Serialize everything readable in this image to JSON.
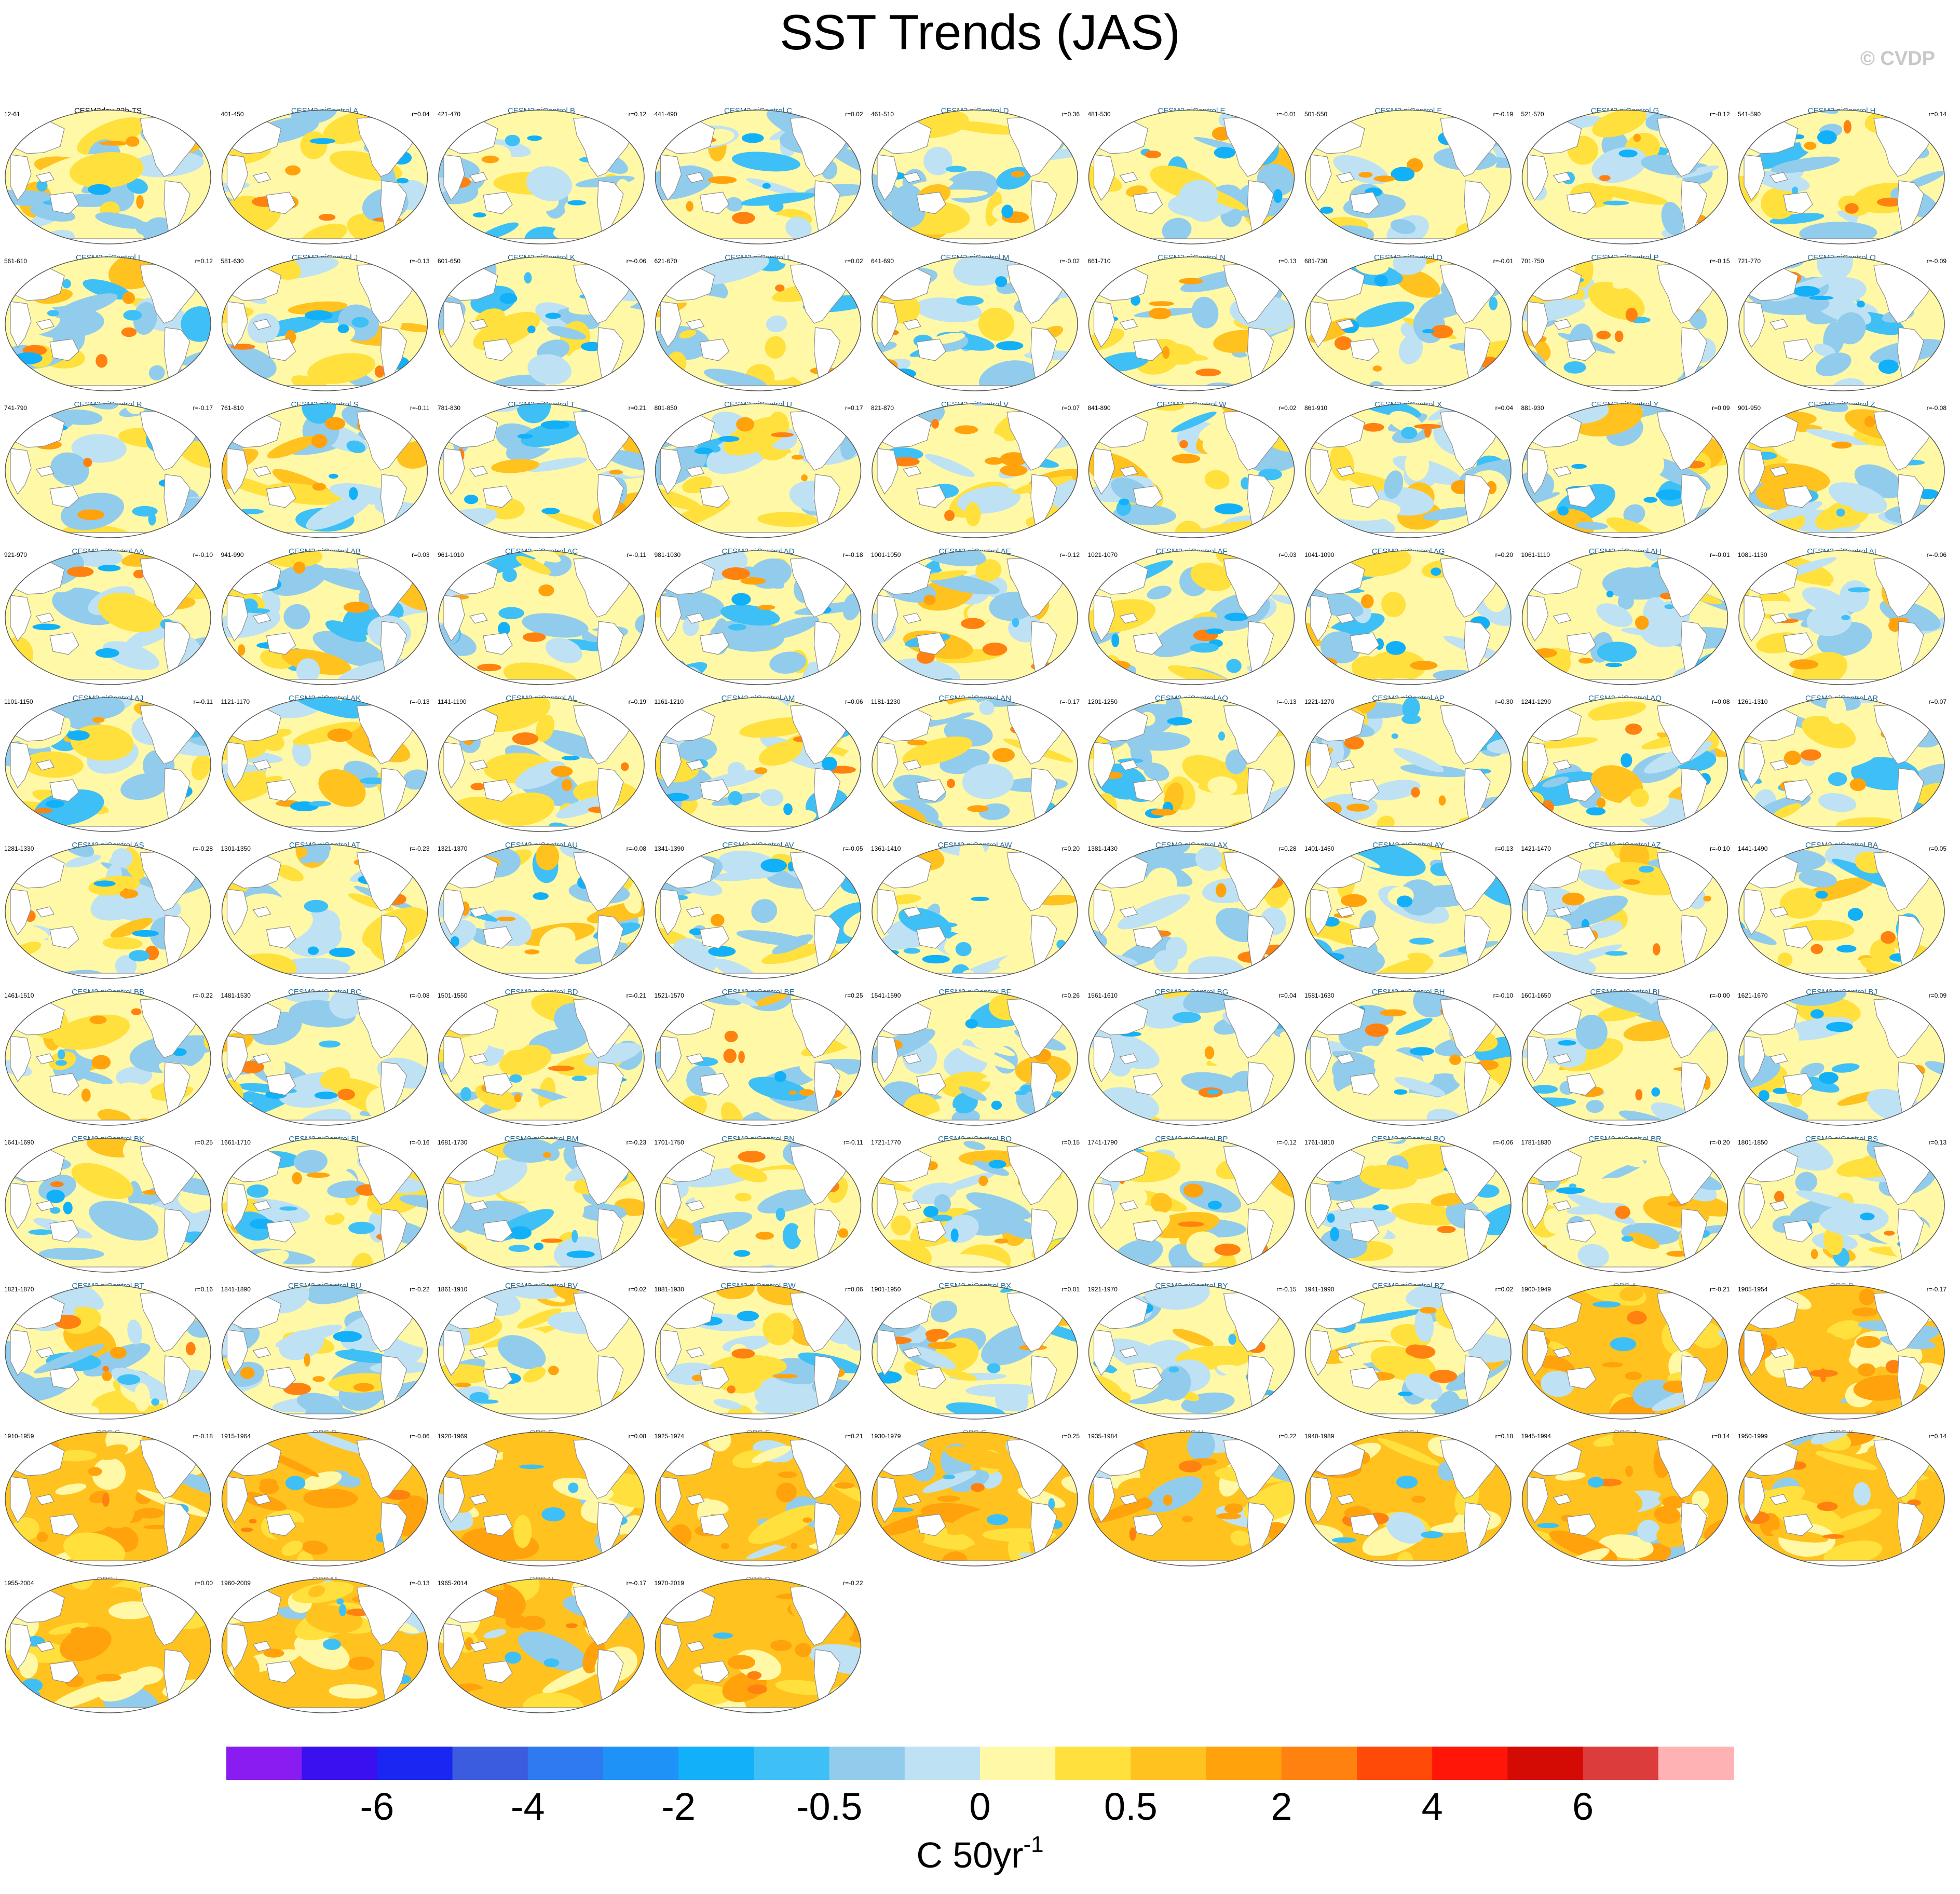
{
  "title": "SST Trends (JAS)",
  "copyright": "© CVDP",
  "chart_data": {
    "type": "heatmap",
    "title": "SST Trends (JAS)",
    "variable": "SST trend",
    "units_base": "C 50yr",
    "units_exp": "-1",
    "colorbar": {
      "colors": [
        "#8a1cf2",
        "#3a10f0",
        "#1a26f2",
        "#3c5cdf",
        "#2f7af0",
        "#1e92f6",
        "#12b0f8",
        "#3ec0f7",
        "#92ccec",
        "#bee2f4",
        "#fff8a6",
        "#ffe03c",
        "#ffc21e",
        "#ffa20c",
        "#ff8210",
        "#ff4a08",
        "#ff1608",
        "#d40a04",
        "#dc3c3c",
        "#ffb2b4"
      ],
      "tick_labels": [
        "-6",
        "-4",
        "-2",
        "-0.5",
        "0",
        "0.5",
        "2",
        "4",
        "6"
      ],
      "tick_boundaries": [
        2,
        4,
        6,
        8,
        10,
        12,
        14,
        16,
        18
      ]
    },
    "panels": [
      {
        "title": "CESM3dev-82b-TS",
        "years": "12-61",
        "r": "",
        "kind": "ref"
      },
      {
        "title": "CESM2 piControl A",
        "years": "401-450",
        "r": "r=0.04",
        "kind": "model"
      },
      {
        "title": "CESM2 piControl B",
        "years": "421-470",
        "r": "r=0.12",
        "kind": "model"
      },
      {
        "title": "CESM2 piControl C",
        "years": "441-490",
        "r": "r=0.02",
        "kind": "model"
      },
      {
        "title": "CESM2 piControl D",
        "years": "461-510",
        "r": "r=0.36",
        "kind": "model"
      },
      {
        "title": "CESM2 piControl E",
        "years": "481-530",
        "r": "r=-0.01",
        "kind": "model"
      },
      {
        "title": "CESM2 piControl F",
        "years": "501-550",
        "r": "r=-0.19",
        "kind": "model"
      },
      {
        "title": "CESM2 piControl G",
        "years": "521-570",
        "r": "r=-0.12",
        "kind": "model"
      },
      {
        "title": "CESM2 piControl H",
        "years": "541-590",
        "r": "r=0.14",
        "kind": "model"
      },
      {
        "title": "CESM2 piControl I",
        "years": "561-610",
        "r": "r=0.12",
        "kind": "model"
      },
      {
        "title": "CESM2 piControl J",
        "years": "581-630",
        "r": "r=-0.13",
        "kind": "model"
      },
      {
        "title": "CESM2 piControl K",
        "years": "601-650",
        "r": "r=-0.06",
        "kind": "model"
      },
      {
        "title": "CESM2 piControl L",
        "years": "621-670",
        "r": "r=0.02",
        "kind": "model"
      },
      {
        "title": "CESM2 piControl M",
        "years": "641-690",
        "r": "r=-0.02",
        "kind": "model"
      },
      {
        "title": "CESM2 piControl N",
        "years": "661-710",
        "r": "r=0.13",
        "kind": "model"
      },
      {
        "title": "CESM2 piControl O",
        "years": "681-730",
        "r": "r=-0.01",
        "kind": "model"
      },
      {
        "title": "CESM2 piControl P",
        "years": "701-750",
        "r": "r=-0.15",
        "kind": "model"
      },
      {
        "title": "CESM2 piControl Q",
        "years": "721-770",
        "r": "r=-0.09",
        "kind": "model"
      },
      {
        "title": "CESM2 piControl R",
        "years": "741-790",
        "r": "r=-0.17",
        "kind": "model"
      },
      {
        "title": "CESM2 piControl S",
        "years": "761-810",
        "r": "r=-0.11",
        "kind": "model"
      },
      {
        "title": "CESM2 piControl T",
        "years": "781-830",
        "r": "r=0.21",
        "kind": "model"
      },
      {
        "title": "CESM2 piControl U",
        "years": "801-850",
        "r": "r=0.17",
        "kind": "model"
      },
      {
        "title": "CESM2 piControl V",
        "years": "821-870",
        "r": "r=0.07",
        "kind": "model"
      },
      {
        "title": "CESM2 piControl W",
        "years": "841-890",
        "r": "r=0.02",
        "kind": "model"
      },
      {
        "title": "CESM2 piControl X",
        "years": "861-910",
        "r": "r=0.04",
        "kind": "model"
      },
      {
        "title": "CESM2 piControl Y",
        "years": "881-930",
        "r": "r=0.09",
        "kind": "model"
      },
      {
        "title": "CESM2 piControl Z",
        "years": "901-950",
        "r": "r=-0.08",
        "kind": "model"
      },
      {
        "title": "CESM2 piControl AA",
        "years": "921-970",
        "r": "r=-0.10",
        "kind": "model"
      },
      {
        "title": "CESM2 piControl AB",
        "years": "941-990",
        "r": "r=0.03",
        "kind": "model"
      },
      {
        "title": "CESM2 piControl AC",
        "years": "961-1010",
        "r": "r=-0.11",
        "kind": "model"
      },
      {
        "title": "CESM2 piControl AD",
        "years": "981-1030",
        "r": "r=-0.18",
        "kind": "model"
      },
      {
        "title": "CESM2 piControl AE",
        "years": "1001-1050",
        "r": "r=-0.12",
        "kind": "model"
      },
      {
        "title": "CESM2 piControl AF",
        "years": "1021-1070",
        "r": "r=0.03",
        "kind": "model"
      },
      {
        "title": "CESM2 piControl AG",
        "years": "1041-1090",
        "r": "r=0.20",
        "kind": "model"
      },
      {
        "title": "CESM2 piControl AH",
        "years": "1061-1110",
        "r": "r=-0.01",
        "kind": "model"
      },
      {
        "title": "CESM2 piControl AI",
        "years": "1081-1130",
        "r": "r=-0.06",
        "kind": "model"
      },
      {
        "title": "CESM2 piControl AJ",
        "years": "1101-1150",
        "r": "r=-0.11",
        "kind": "model"
      },
      {
        "title": "CESM2 piControl AK",
        "years": "1121-1170",
        "r": "r=-0.13",
        "kind": "model"
      },
      {
        "title": "CESM2 piControl AL",
        "years": "1141-1190",
        "r": "r=0.19",
        "kind": "model"
      },
      {
        "title": "CESM2 piControl AM",
        "years": "1161-1210",
        "r": "r=0.06",
        "kind": "model"
      },
      {
        "title": "CESM2 piControl AN",
        "years": "1181-1230",
        "r": "r=-0.17",
        "kind": "model"
      },
      {
        "title": "CESM2 piControl AO",
        "years": "1201-1250",
        "r": "r=-0.13",
        "kind": "model"
      },
      {
        "title": "CESM2 piControl AP",
        "years": "1221-1270",
        "r": "r=0.30",
        "kind": "model"
      },
      {
        "title": "CESM2 piControl AQ",
        "years": "1241-1290",
        "r": "r=0.08",
        "kind": "model"
      },
      {
        "title": "CESM2 piControl AR",
        "years": "1261-1310",
        "r": "r=0.07",
        "kind": "model"
      },
      {
        "title": "CESM2 piControl AS",
        "years": "1281-1330",
        "r": "r=-0.28",
        "kind": "model"
      },
      {
        "title": "CESM2 piControl AT",
        "years": "1301-1350",
        "r": "r=-0.23",
        "kind": "model"
      },
      {
        "title": "CESM2 piControl AU",
        "years": "1321-1370",
        "r": "r=-0.08",
        "kind": "model"
      },
      {
        "title": "CESM2 piControl AV",
        "years": "1341-1390",
        "r": "r=-0.05",
        "kind": "model"
      },
      {
        "title": "CESM2 piControl AW",
        "years": "1361-1410",
        "r": "r=0.20",
        "kind": "model"
      },
      {
        "title": "CESM2 piControl AX",
        "years": "1381-1430",
        "r": "r=0.28",
        "kind": "model"
      },
      {
        "title": "CESM2 piControl AY",
        "years": "1401-1450",
        "r": "r=0.13",
        "kind": "model"
      },
      {
        "title": "CESM2 piControl AZ",
        "years": "1421-1470",
        "r": "r=-0.10",
        "kind": "model"
      },
      {
        "title": "CESM2 piControl BA",
        "years": "1441-1490",
        "r": "r=0.05",
        "kind": "model"
      },
      {
        "title": "CESM2 piControl BB",
        "years": "1461-1510",
        "r": "r=-0.22",
        "kind": "model"
      },
      {
        "title": "CESM2 piControl BC",
        "years": "1481-1530",
        "r": "r=-0.08",
        "kind": "model"
      },
      {
        "title": "CESM2 piControl BD",
        "years": "1501-1550",
        "r": "r=-0.21",
        "kind": "model"
      },
      {
        "title": "CESM2 piControl BE",
        "years": "1521-1570",
        "r": "r=0.25",
        "kind": "model"
      },
      {
        "title": "CESM2 piControl BF",
        "years": "1541-1590",
        "r": "r=0.26",
        "kind": "model"
      },
      {
        "title": "CESM2 piControl BG",
        "years": "1561-1610",
        "r": "r=0.04",
        "kind": "model"
      },
      {
        "title": "CESM2 piControl BH",
        "years": "1581-1630",
        "r": "r=-0.10",
        "kind": "model"
      },
      {
        "title": "CESM2 piControl BI",
        "years": "1601-1650",
        "r": "r=-0.00",
        "kind": "model"
      },
      {
        "title": "CESM2 piControl BJ",
        "years": "1621-1670",
        "r": "r=0.09",
        "kind": "model"
      },
      {
        "title": "CESM2 piControl BK",
        "years": "1641-1690",
        "r": "r=0.25",
        "kind": "model"
      },
      {
        "title": "CESM2 piControl BL",
        "years": "1661-1710",
        "r": "r=-0.16",
        "kind": "model"
      },
      {
        "title": "CESM2 piControl BM",
        "years": "1681-1730",
        "r": "r=-0.23",
        "kind": "model"
      },
      {
        "title": "CESM2 piControl BN",
        "years": "1701-1750",
        "r": "r=-0.11",
        "kind": "model"
      },
      {
        "title": "CESM2 piControl BO",
        "years": "1721-1770",
        "r": "r=0.15",
        "kind": "model"
      },
      {
        "title": "CESM2 piControl BP",
        "years": "1741-1790",
        "r": "r=-0.12",
        "kind": "model"
      },
      {
        "title": "CESM2 piControl BQ",
        "years": "1761-1810",
        "r": "r=-0.06",
        "kind": "model"
      },
      {
        "title": "CESM2 piControl BR",
        "years": "1781-1830",
        "r": "r=-0.20",
        "kind": "model"
      },
      {
        "title": "CESM2 piControl BS",
        "years": "1801-1850",
        "r": "r=0.13",
        "kind": "model"
      },
      {
        "title": "CESM2 piControl BT",
        "years": "1821-1870",
        "r": "r=0.16",
        "kind": "model"
      },
      {
        "title": "CESM2 piControl BU",
        "years": "1841-1890",
        "r": "r=-0.22",
        "kind": "model"
      },
      {
        "title": "CESM2 piControl BV",
        "years": "1861-1910",
        "r": "r=0.02",
        "kind": "model"
      },
      {
        "title": "CESM2 piControl BW",
        "years": "1881-1930",
        "r": "r=0.06",
        "kind": "model"
      },
      {
        "title": "CESM2 piControl BX",
        "years": "1901-1950",
        "r": "r=0.01",
        "kind": "model"
      },
      {
        "title": "CESM2 piControl BY",
        "years": "1921-1970",
        "r": "r=-0.15",
        "kind": "model"
      },
      {
        "title": "CESM2 piControl BZ",
        "years": "1941-1990",
        "r": "r=0.02",
        "kind": "model"
      },
      {
        "title": "OBS A",
        "years": "1900-1949",
        "r": "r=-0.21",
        "kind": "obs"
      },
      {
        "title": "OBS B",
        "years": "1905-1954",
        "r": "r=-0.17",
        "kind": "obs"
      },
      {
        "title": "OBS C",
        "years": "1910-1959",
        "r": "r=-0.18",
        "kind": "obs"
      },
      {
        "title": "OBS D",
        "years": "1915-1964",
        "r": "r=-0.06",
        "kind": "obs"
      },
      {
        "title": "OBS E",
        "years": "1920-1969",
        "r": "r=0.08",
        "kind": "obs"
      },
      {
        "title": "OBS F",
        "years": "1925-1974",
        "r": "r=0.21",
        "kind": "obs"
      },
      {
        "title": "OBS G",
        "years": "1930-1979",
        "r": "r=0.25",
        "kind": "obs"
      },
      {
        "title": "OBS H",
        "years": "1935-1984",
        "r": "r=0.22",
        "kind": "obs"
      },
      {
        "title": "OBS I",
        "years": "1940-1989",
        "r": "r=0.18",
        "kind": "obs"
      },
      {
        "title": "OBS J",
        "years": "1945-1994",
        "r": "r=0.14",
        "kind": "obs"
      },
      {
        "title": "OBS K",
        "years": "1950-1999",
        "r": "r=0.14",
        "kind": "obs"
      },
      {
        "title": "OBS L",
        "years": "1955-2004",
        "r": "r=0.00",
        "kind": "obs"
      },
      {
        "title": "OBS M",
        "years": "1960-2009",
        "r": "r=-0.13",
        "kind": "obs"
      },
      {
        "title": "OBS N",
        "years": "1965-2014",
        "r": "r=-0.17",
        "kind": "obs"
      },
      {
        "title": "OBS O",
        "years": "1970-2019",
        "r": "r=-0.22",
        "kind": "obs"
      }
    ]
  }
}
